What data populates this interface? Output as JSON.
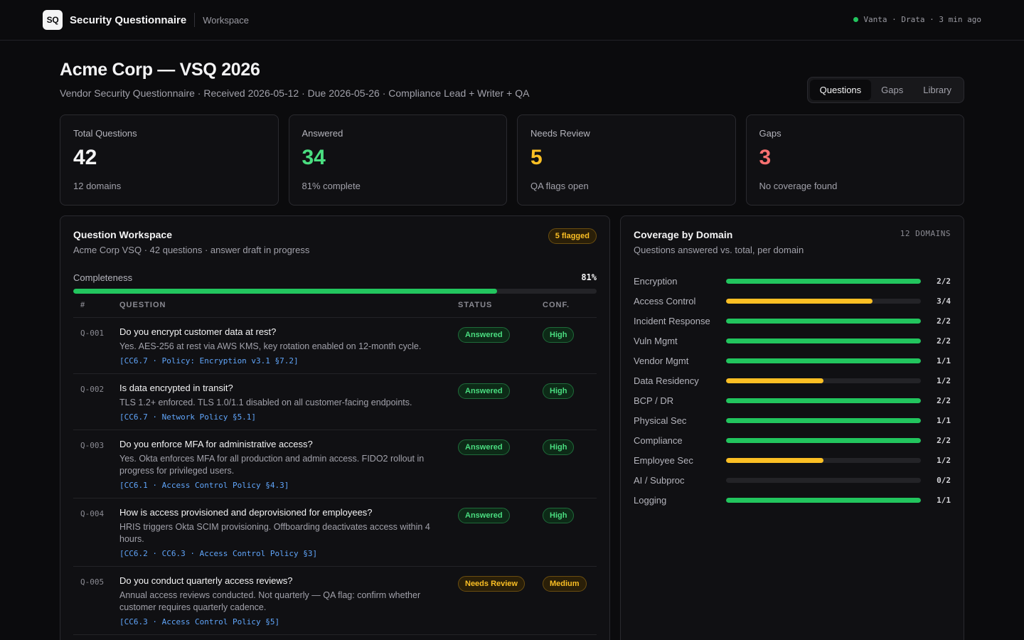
{
  "app": {
    "logo": "SQ",
    "title": "Security Questionnaire",
    "workspace": "Workspace",
    "sync_status": "Vanta · Drata · 3 min ago",
    "sync_color": "#22c55e"
  },
  "header": {
    "title": "Acme Corp — VSQ 2026",
    "subtitle": "Vendor Security Questionnaire · Received 2026-05-12 · Due 2026-05-26 · Compliance Lead + Writer + QA",
    "tabs": [
      {
        "label": "Questions",
        "active": true
      },
      {
        "label": "Gaps",
        "active": false
      },
      {
        "label": "Library",
        "active": false
      }
    ]
  },
  "stats": [
    {
      "label": "Total Questions",
      "value": "42",
      "sub": "12 domains",
      "color": "#f4f4f5"
    },
    {
      "label": "Answered",
      "value": "34",
      "sub": "81% complete",
      "color": "#4ade80"
    },
    {
      "label": "Needs Review",
      "value": "5",
      "sub": "QA flags open",
      "color": "#fbbf24"
    },
    {
      "label": "Gaps",
      "value": "3",
      "sub": "No coverage found",
      "color": "#f87171"
    }
  ],
  "workspace_panel": {
    "title": "Question Workspace",
    "subtitle": "Acme Corp VSQ · 42 questions · answer draft in progress",
    "flag_badge": "5 flagged",
    "completeness_label": "Completeness",
    "completeness_pct": "81%",
    "completeness_value": 81,
    "columns": {
      "num": "#",
      "question": "QUESTION",
      "status": "STATUS",
      "conf": "CONF."
    },
    "questions": [
      {
        "id": "Q-001",
        "question": "Do you encrypt customer data at rest?",
        "answer": "Yes. AES-256 at rest via AWS KMS, key rotation enabled on 12-month cycle.",
        "refs": "[CC6.7 · Policy: Encryption v3.1 §7.2]",
        "status": "Answered",
        "status_tone": "green",
        "conf": "High",
        "conf_tone": "green"
      },
      {
        "id": "Q-002",
        "question": "Is data encrypted in transit?",
        "answer": "TLS 1.2+ enforced. TLS 1.0/1.1 disabled on all customer-facing endpoints.",
        "refs": "[CC6.7 · Network Policy §5.1]",
        "status": "Answered",
        "status_tone": "green",
        "conf": "High",
        "conf_tone": "green"
      },
      {
        "id": "Q-003",
        "question": "Do you enforce MFA for administrative access?",
        "answer": "Yes. Okta enforces MFA for all production and admin access. FIDO2 rollout in progress for privileged users.",
        "refs": "[CC6.1 · Access Control Policy §4.3]",
        "status": "Answered",
        "status_tone": "green",
        "conf": "High",
        "conf_tone": "green"
      },
      {
        "id": "Q-004",
        "question": "How is access provisioned and deprovisioned for employees?",
        "answer": "HRIS triggers Okta SCIM provisioning. Offboarding deactivates access within 4 hours.",
        "refs": "[CC6.2 · CC6.3 · Access Control Policy §3]",
        "status": "Answered",
        "status_tone": "green",
        "conf": "High",
        "conf_tone": "green"
      },
      {
        "id": "Q-005",
        "question": "Do you conduct quarterly access reviews?",
        "answer": "Annual access reviews conducted. Not quarterly — QA flag: confirm whether customer requires quarterly cadence.",
        "refs": "[CC6.3 · Access Control Policy §5]",
        "status": "Needs Review",
        "status_tone": "yellow",
        "conf": "Medium",
        "conf_tone": "yellow"
      }
    ]
  },
  "coverage_panel": {
    "title": "Coverage by Domain",
    "subtitle": "Questions answered vs. total, per domain",
    "count_label": "12 DOMAINS",
    "domains": [
      {
        "name": "Encryption",
        "answered": 2,
        "total": 2,
        "ratio": "2/2",
        "color": "#22c55e"
      },
      {
        "name": "Access Control",
        "answered": 3,
        "total": 4,
        "ratio": "3/4",
        "color": "#fbbf24"
      },
      {
        "name": "Incident Response",
        "answered": 2,
        "total": 2,
        "ratio": "2/2",
        "color": "#22c55e"
      },
      {
        "name": "Vuln Mgmt",
        "answered": 2,
        "total": 2,
        "ratio": "2/2",
        "color": "#22c55e"
      },
      {
        "name": "Vendor Mgmt",
        "answered": 1,
        "total": 1,
        "ratio": "1/1",
        "color": "#22c55e"
      },
      {
        "name": "Data Residency",
        "answered": 1,
        "total": 2,
        "ratio": "1/2",
        "color": "#fbbf24"
      },
      {
        "name": "BCP / DR",
        "answered": 2,
        "total": 2,
        "ratio": "2/2",
        "color": "#22c55e"
      },
      {
        "name": "Physical Sec",
        "answered": 1,
        "total": 1,
        "ratio": "1/1",
        "color": "#22c55e"
      },
      {
        "name": "Compliance",
        "answered": 2,
        "total": 2,
        "ratio": "2/2",
        "color": "#22c55e"
      },
      {
        "name": "Employee Sec",
        "answered": 1,
        "total": 2,
        "ratio": "1/2",
        "color": "#fbbf24"
      },
      {
        "name": "AI / Subproc",
        "answered": 0,
        "total": 2,
        "ratio": "0/2",
        "color": "#ef4444"
      },
      {
        "name": "Logging",
        "answered": 1,
        "total": 1,
        "ratio": "1/1",
        "color": "#22c55e"
      }
    ]
  }
}
